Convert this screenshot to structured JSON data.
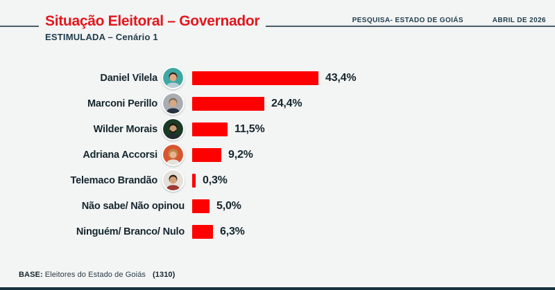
{
  "colors": {
    "page_bg": "#f3f4f4",
    "accent_red": "#e2171d",
    "bar_red": "#fe0000",
    "navy": "#1e3c4b",
    "text_dark": "#15262e",
    "rule": "#4e5d66",
    "rule_light": "#e9eff3",
    "footer_bar": "#15313d",
    "avatar_ring": "#ffffff"
  },
  "header": {
    "title": "Situação Eleitoral – Governador",
    "subtitle": "ESTIMULADA – Cenário 1",
    "meta_left": "PESQUISA- ESTADO DE GOIÁS",
    "meta_right": "ABRIL DE 2026"
  },
  "chart_data": {
    "type": "bar",
    "orientation": "horizontal",
    "title": "Situação Eleitoral – Governador",
    "subtitle": "ESTIMULADA – Cenário 1",
    "categories": [
      "Daniel Vilela",
      "Marconi Perillo",
      "Wilder Morais",
      "Adriana Accorsi",
      "Telemaco Brandão",
      "Não sabe/ Não opinou",
      "Ninguém/ Branco/ Nulo"
    ],
    "values": [
      43.4,
      24.4,
      11.5,
      9.2,
      0.3,
      5.0,
      6.3
    ],
    "value_labels": [
      "43,4%",
      "24,4%",
      "11,5%",
      "9,2%",
      "0,3%",
      "5,0%",
      "6,3%"
    ],
    "bar_color": "#fe0000",
    "xlim": [
      0,
      47
    ],
    "grid": false,
    "legend": false,
    "data_label_position": "outside-end"
  },
  "avatars": [
    {
      "name": "Daniel Vilela",
      "bg": "#3fa8a3",
      "hair": "#33261f",
      "skin": "#e3a983",
      "shirt": "#b9cdd6",
      "style": "short"
    },
    {
      "name": "Marconi Perillo",
      "bg": "#a9adb1",
      "hair": "#7a6a5c",
      "skin": "#d9a77f",
      "shirt": "#29323e",
      "style": "short"
    },
    {
      "name": "Wilder Morais",
      "bg": "#1a3a26",
      "hair": "#20160f",
      "skin": "#c89c74",
      "shirt": "#222b33",
      "style": "beard"
    },
    {
      "name": "Adriana Accorsi",
      "bg": "#d8552f",
      "hair": "#bd8748",
      "skin": "#e7b491",
      "shirt": "#e4e1da",
      "style": "long"
    },
    {
      "name": "Telemaco Brandão",
      "bg": "#e4e0da",
      "hair": "#2c1d14",
      "skin": "#d5a078",
      "shirt": "#9c3a33",
      "style": "short"
    },
    null,
    null
  ],
  "footer": {
    "base_label": "BASE:",
    "base_text": "Eleitores do Estado de Goiás",
    "count": "(1310)"
  }
}
